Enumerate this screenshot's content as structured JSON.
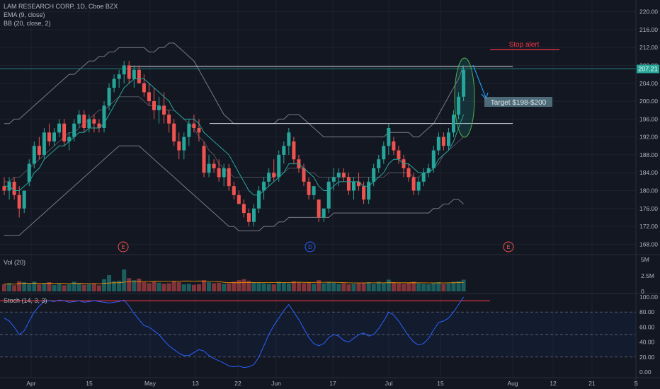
{
  "header": {
    "symbol_line": "LAM RESEARCH CORP, 1D, Cboe BZX",
    "ema_label": "EMA (9, close)",
    "bb_label": "BB (20, close, 2)"
  },
  "volume_panel": {
    "label": "Vol (20)",
    "axis_ticks": [
      "5M",
      "2.5M",
      "0"
    ]
  },
  "stoch_panel": {
    "label": "Stoch (14, 3, 3)",
    "axis_ticks": [
      "100.00",
      "80.00",
      "60.00",
      "40.00",
      "20.00",
      "0.00"
    ]
  },
  "annotations": {
    "stop_alert": "Stop alert",
    "target": "Target $198-$200",
    "last_price": "207.21"
  },
  "event_markers": [
    "E",
    "D",
    "E"
  ],
  "colors": {
    "background": "#131722",
    "up": "#26a69a",
    "down": "#ef5350",
    "ema": "#26a69a",
    "bb": "#787b86",
    "stoch": "#2962ff",
    "alert": "#f23645",
    "grid": "#1e222d"
  },
  "chart_data": {
    "type": "candlestick",
    "price_axis": {
      "ticks": [
        168,
        172,
        176,
        180,
        184,
        188,
        192,
        196,
        200,
        204,
        208,
        212,
        216,
        220
      ],
      "labels": [
        "168.00",
        "172.00",
        "176.00",
        "180.00",
        "184.00",
        "188.00",
        "192.00",
        "196.00",
        "200.00",
        "204.00",
        "208.00",
        "212.00",
        "216.00",
        "220.00"
      ],
      "ylim": [
        166,
        222
      ]
    },
    "x_axis": {
      "labels": [
        "Apr",
        "15",
        "May",
        "13",
        "22",
        "Jun",
        "17",
        "Jul",
        "15",
        "Aug",
        "12",
        "21",
        "S"
      ]
    },
    "horizontal_levels": [
      {
        "name": "resistance",
        "value": 207.5
      },
      {
        "name": "support",
        "value": 195
      },
      {
        "name": "stop_alert",
        "value": 211.5
      }
    ],
    "last_price": 207.21,
    "ohlc": [
      [
        181,
        183,
        179,
        180
      ],
      [
        180,
        183,
        178,
        182
      ],
      [
        182,
        183,
        178,
        179
      ],
      [
        179,
        181,
        174,
        176
      ],
      [
        176,
        180,
        175,
        180
      ],
      [
        182,
        187,
        181,
        186
      ],
      [
        186,
        191,
        185,
        190
      ],
      [
        190,
        192,
        187,
        188
      ],
      [
        188,
        194,
        187,
        193
      ],
      [
        193,
        195,
        190,
        191
      ],
      [
        191,
        194,
        190,
        193
      ],
      [
        193,
        196,
        192,
        195
      ],
      [
        195,
        196,
        190,
        191
      ],
      [
        191,
        193,
        189,
        192
      ],
      [
        192,
        196,
        191,
        195
      ],
      [
        195,
        198,
        194,
        197
      ],
      [
        197,
        198,
        193,
        194
      ],
      [
        194,
        197,
        193,
        196
      ],
      [
        196,
        197,
        193,
        195
      ],
      [
        195,
        196,
        193,
        194
      ],
      [
        194,
        200,
        193,
        199
      ],
      [
        199,
        204,
        198,
        203
      ],
      [
        203,
        206,
        202,
        205
      ],
      [
        205,
        207,
        203,
        206
      ],
      [
        206,
        209,
        204,
        208
      ],
      [
        208,
        209,
        204,
        205
      ],
      [
        205,
        208,
        203,
        207
      ],
      [
        207,
        208,
        204,
        204
      ],
      [
        204,
        206,
        201,
        202
      ],
      [
        202,
        204,
        199,
        200
      ],
      [
        200,
        203,
        196,
        198
      ],
      [
        198,
        201,
        195,
        199
      ],
      [
        199,
        202,
        195,
        197
      ],
      [
        197,
        198,
        193,
        195
      ],
      [
        195,
        196,
        190,
        191
      ],
      [
        191,
        193,
        187,
        189
      ],
      [
        189,
        193,
        187,
        192
      ],
      [
        192,
        196,
        190,
        195
      ],
      [
        195,
        197,
        193,
        194
      ],
      [
        194,
        196,
        191,
        193
      ],
      [
        190,
        191,
        183,
        184
      ],
      [
        184,
        188,
        183,
        186
      ],
      [
        186,
        187,
        184,
        185
      ],
      [
        185,
        187,
        182,
        183
      ],
      [
        183,
        186,
        181,
        185
      ],
      [
        185,
        186,
        180,
        181
      ],
      [
        181,
        182,
        178,
        179
      ],
      [
        179,
        180,
        177,
        177
      ],
      [
        177,
        178,
        174,
        175
      ],
      [
        175,
        176,
        172,
        173
      ],
      [
        173,
        177,
        172,
        176
      ],
      [
        176,
        181,
        175,
        180
      ],
      [
        180,
        183,
        178,
        182
      ],
      [
        182,
        185,
        181,
        184
      ],
      [
        184,
        187,
        182,
        183
      ],
      [
        183,
        189,
        182,
        188
      ],
      [
        188,
        191,
        186,
        190
      ],
      [
        190,
        194,
        188,
        193
      ],
      [
        191,
        192,
        186,
        187
      ],
      [
        187,
        188,
        184,
        185
      ],
      [
        185,
        186,
        181,
        182
      ],
      [
        182,
        183,
        178,
        179
      ],
      [
        179,
        181,
        178,
        181
      ],
      [
        178,
        178,
        173,
        174
      ],
      [
        174,
        176,
        173,
        176
      ],
      [
        176,
        183,
        175,
        182
      ],
      [
        182,
        185,
        180,
        183
      ],
      [
        183,
        185,
        181,
        184
      ],
      [
        184,
        185,
        182,
        183
      ],
      [
        183,
        184,
        179,
        180
      ],
      [
        180,
        183,
        178,
        182
      ],
      [
        182,
        184,
        180,
        181
      ],
      [
        181,
        182,
        177,
        178
      ],
      [
        178,
        183,
        177,
        182
      ],
      [
        182,
        186,
        181,
        185
      ],
      [
        185,
        188,
        184,
        187
      ],
      [
        187,
        191,
        186,
        190
      ],
      [
        190,
        195,
        188,
        194
      ],
      [
        191,
        192,
        188,
        189
      ],
      [
        189,
        190,
        186,
        187
      ],
      [
        187,
        188,
        183,
        185
      ],
      [
        185,
        186,
        182,
        183
      ],
      [
        183,
        184,
        179,
        180
      ],
      [
        180,
        183,
        179,
        182
      ],
      [
        182,
        185,
        181,
        184
      ],
      [
        184,
        186,
        183,
        185
      ],
      [
        185,
        190,
        184,
        189
      ],
      [
        189,
        193,
        188,
        192
      ],
      [
        192,
        193,
        189,
        190
      ],
      [
        190,
        194,
        189,
        193
      ],
      [
        193,
        198,
        192,
        197
      ],
      [
        197,
        202,
        196,
        201
      ],
      [
        201,
        208,
        200,
        207
      ]
    ],
    "ema": [
      181,
      181,
      180,
      180,
      181,
      182,
      184,
      185,
      187,
      188,
      189,
      190,
      190,
      191,
      192,
      193,
      193,
      194,
      194,
      194,
      195,
      197,
      199,
      201,
      203,
      204,
      205,
      205,
      205,
      204,
      203,
      202,
      201,
      200,
      198,
      197,
      196,
      196,
      196,
      195,
      193,
      192,
      191,
      190,
      189,
      188,
      186,
      184,
      182,
      180,
      179,
      179,
      180,
      181,
      182,
      183,
      184,
      186,
      186,
      186,
      185,
      184,
      183,
      181,
      180,
      180,
      181,
      182,
      182,
      182,
      182,
      182,
      181,
      181,
      182,
      183,
      184,
      186,
      187,
      187,
      186,
      186,
      185,
      184,
      184,
      184,
      185,
      187,
      188,
      189,
      191,
      194,
      197
    ],
    "bb_upper": [
      195,
      195,
      196,
      196,
      197,
      198,
      199,
      200,
      201,
      202,
      203,
      204,
      205,
      206,
      206,
      207,
      208,
      209,
      209,
      210,
      210,
      211,
      211,
      212,
      212,
      212,
      212,
      212,
      212,
      211,
      211,
      212,
      212,
      213,
      213,
      212,
      211,
      210,
      209,
      207,
      205,
      203,
      201,
      199,
      197,
      196,
      195,
      195,
      195,
      195,
      195,
      195,
      195,
      195,
      195,
      196,
      196,
      197,
      197,
      197,
      196,
      195,
      194,
      193,
      192,
      192,
      192,
      192,
      192,
      192,
      192,
      192,
      192,
      192,
      192,
      192,
      192,
      193,
      193,
      193,
      193,
      193,
      192,
      192,
      193,
      194,
      195,
      197,
      199,
      201,
      203,
      205,
      208
    ],
    "bb_lower": [
      170,
      170,
      170,
      170,
      171,
      172,
      173,
      174,
      175,
      176,
      177,
      178,
      179,
      180,
      181,
      182,
      183,
      184,
      185,
      186,
      187,
      188,
      189,
      190,
      190,
      190,
      190,
      190,
      189,
      188,
      187,
      186,
      185,
      184,
      183,
      182,
      181,
      180,
      179,
      178,
      177,
      176,
      175,
      174,
      173,
      172,
      172,
      171,
      171,
      171,
      171,
      171,
      172,
      172,
      172,
      173,
      173,
      174,
      174,
      174,
      174,
      174,
      174,
      174,
      174,
      174,
      175,
      175,
      175,
      175,
      175,
      175,
      175,
      175,
      175,
      175,
      175,
      175,
      175,
      175,
      175,
      175,
      175,
      175,
      175,
      175,
      176,
      176,
      177,
      177,
      178,
      178,
      177
    ],
    "bb_basis": [
      182,
      182,
      183,
      183,
      184,
      185,
      186,
      187,
      188,
      189,
      190,
      191,
      192,
      193,
      193,
      194,
      195,
      196,
      197,
      198,
      198,
      199,
      200,
      201,
      201,
      201,
      201,
      201,
      200,
      199,
      199,
      199,
      198,
      198,
      198,
      197,
      196,
      195,
      194,
      192,
      191,
      189,
      188,
      186,
      185,
      184,
      183,
      183,
      183,
      183,
      183,
      183,
      183,
      183,
      183,
      184,
      184,
      185,
      185,
      185,
      185,
      184,
      184,
      183,
      183,
      183,
      183,
      183,
      183,
      183,
      183,
      183,
      183,
      183,
      183,
      183,
      183,
      184,
      184,
      184,
      184,
      184,
      183,
      183,
      184,
      184,
      185,
      186,
      188,
      189,
      190,
      191,
      192
    ],
    "volume": [
      1.4,
      1.6,
      1.2,
      2.0,
      1.8,
      1.5,
      1.9,
      1.4,
      1.6,
      1.8,
      1.3,
      1.5,
      1.2,
      1.4,
      1.9,
      1.6,
      1.3,
      1.4,
      1.5,
      1.2,
      2.4,
      3.2,
      2.0,
      2.1,
      4.3,
      2.6,
      2.2,
      2.5,
      1.8,
      1.6,
      1.9,
      1.7,
      1.5,
      1.6,
      2.0,
      1.8,
      1.4,
      1.5,
      1.3,
      1.4,
      2.2,
      1.8,
      1.6,
      1.7,
      1.5,
      1.6,
      1.9,
      2.2,
      2.4,
      2.1,
      1.8,
      1.7,
      1.6,
      1.5,
      1.4,
      1.9,
      1.7,
      1.6,
      2.0,
      1.8,
      1.6,
      1.7,
      1.5,
      2.2,
      1.6,
      1.8,
      1.7,
      1.5,
      1.6,
      1.4,
      1.5,
      1.6,
      1.7,
      1.8,
      1.5,
      1.9,
      1.7,
      2.3,
      1.8,
      1.6,
      1.5,
      1.7,
      1.9,
      1.6,
      1.5,
      1.4,
      1.7,
      1.8,
      1.5,
      1.6,
      1.9,
      2.0,
      2.3
    ],
    "stoch_k": [
      72,
      68,
      60,
      50,
      55,
      68,
      80,
      88,
      94,
      95,
      94,
      96,
      95,
      93,
      94,
      95,
      93,
      94,
      95,
      94,
      93,
      92,
      93,
      94,
      96,
      88,
      78,
      70,
      62,
      60,
      55,
      50,
      42,
      35,
      30,
      25,
      22,
      22,
      26,
      30,
      28,
      22,
      18,
      15,
      12,
      8,
      7,
      8,
      6,
      7,
      10,
      20,
      35,
      50,
      62,
      72,
      82,
      90,
      80,
      70,
      58,
      46,
      38,
      35,
      38,
      46,
      50,
      48,
      42,
      40,
      45,
      50,
      52,
      48,
      50,
      58,
      68,
      80,
      76,
      68,
      58,
      48,
      40,
      36,
      38,
      45,
      56,
      66,
      68,
      72,
      80,
      90,
      100
    ]
  }
}
